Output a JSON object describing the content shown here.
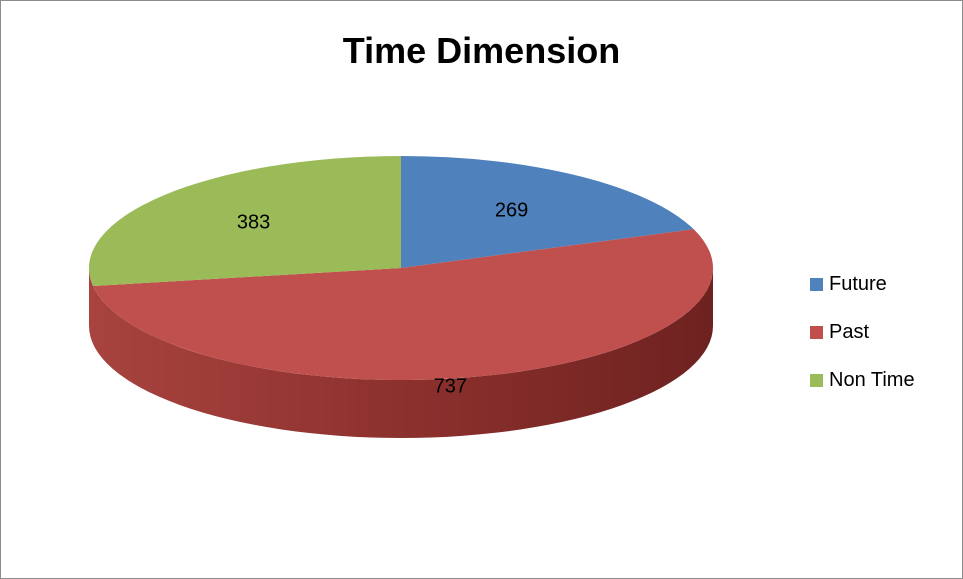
{
  "chart_data": {
    "type": "pie",
    "title": "Time Dimension",
    "slices": [
      {
        "label": "Future",
        "value": 269,
        "color": "#4f81bd"
      },
      {
        "label": "Past",
        "value": 737,
        "color": "#c0504d"
      },
      {
        "label": "Non Time",
        "value": 383,
        "color": "#9bbb59"
      }
    ],
    "data_labels": true,
    "legend_position": "right",
    "style": "3d"
  }
}
